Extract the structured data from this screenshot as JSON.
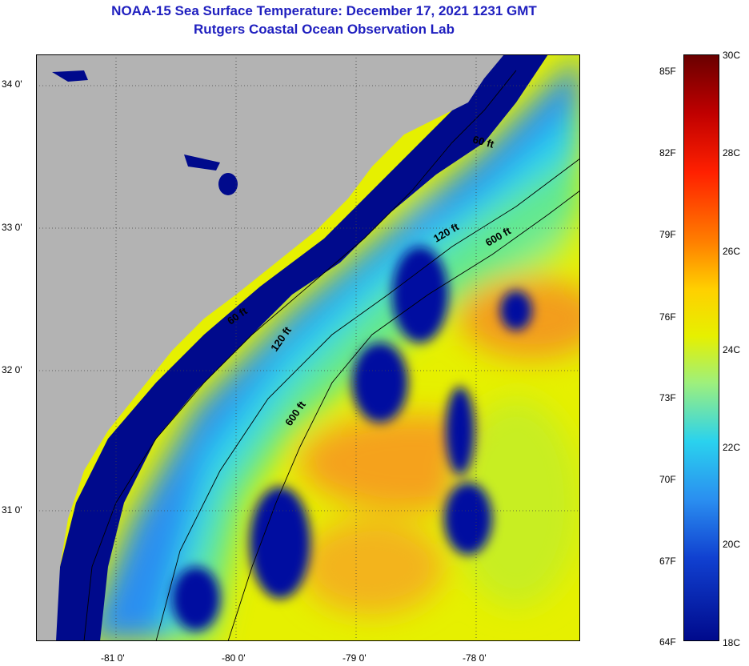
{
  "title": "NOAA-15 Sea Surface Temperature:  December 17, 2021 1231 GMT",
  "subtitle": "Rutgers Coastal Ocean Observation Lab",
  "lat_labels": [
    "34 0'",
    "33 0'",
    "32 0'",
    "31 0'"
  ],
  "lon_labels": [
    "-81 0'",
    "-80 0'",
    "-79 0'",
    "-78 0'"
  ],
  "contours": [
    "60 ft",
    "120 ft",
    "600 ft",
    "60 ft",
    "120 ft",
    "600 ft"
  ],
  "colorbar": {
    "fahrenheit": [
      "85F",
      "82F",
      "79F",
      "76F",
      "73F",
      "70F",
      "67F",
      "64F"
    ],
    "celsius": [
      "30C",
      "28C",
      "26C",
      "24C",
      "22C",
      "20C",
      "18C"
    ]
  },
  "colors": {
    "land": "#b3b3b3",
    "cold": "#000a8c",
    "title": "#1f1fbf"
  }
}
